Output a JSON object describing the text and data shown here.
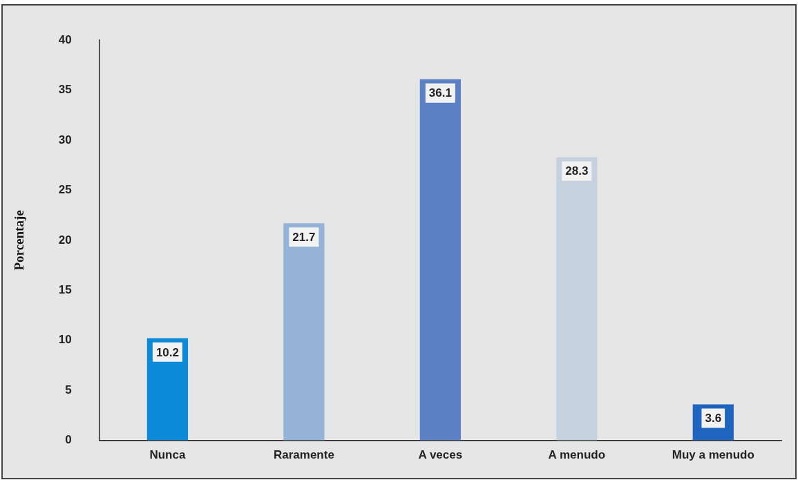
{
  "chart_data": {
    "type": "bar",
    "ylabel": "Porcentaje",
    "categories": [
      "Nunca",
      "Raramente",
      "A veces",
      "A menudo",
      "Muy a menudo"
    ],
    "values": [
      10.2,
      21.7,
      36.1,
      28.3,
      3.6
    ],
    "colors": [
      "#0a8ad8",
      "#95b3d7",
      "#5b80c6",
      "#c5d1df",
      "#1f64bf"
    ],
    "ylim": [
      0,
      40
    ],
    "yticks": [
      0,
      5,
      10,
      15,
      20,
      25,
      30,
      35,
      40
    ],
    "grid": false,
    "legend": false,
    "data_labels": true
  }
}
